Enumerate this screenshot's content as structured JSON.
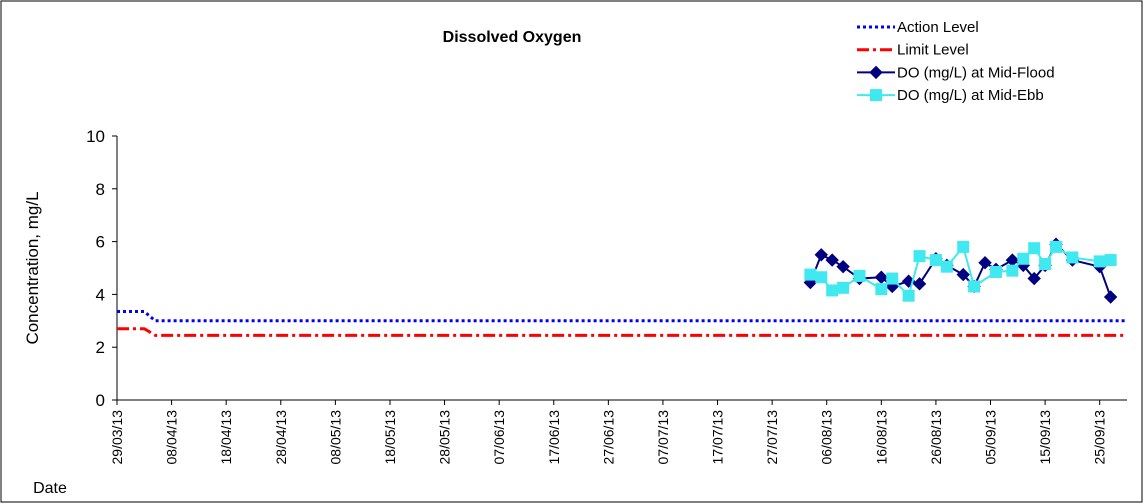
{
  "chart_data": {
    "type": "line",
    "title": "Dissolved Oxygen",
    "x_label": "Date",
    "y_label": "Concentration, mg/L",
    "xlim": [
      "29/03/13",
      "30/09/13"
    ],
    "xticks": [
      "29/03/13",
      "08/04/13",
      "18/04/13",
      "28/04/13",
      "08/05/13",
      "18/05/13",
      "28/05/13",
      "07/06/13",
      "17/06/13",
      "27/06/13",
      "07/07/13",
      "17/07/13",
      "27/07/13",
      "06/08/13",
      "16/08/13",
      "26/08/13",
      "05/09/13",
      "15/09/13",
      "25/09/13"
    ],
    "ylim": [
      0,
      10
    ],
    "yticks": [
      0,
      2,
      4,
      6,
      8,
      10
    ],
    "grid": false,
    "series": [
      {
        "name": "Action Level",
        "color": "#0000ff",
        "dash": "dot",
        "marker": "none",
        "x": [
          "29/03/13",
          "03/04/13",
          "05/04/13",
          "30/09/13"
        ],
        "values": [
          3.35,
          3.35,
          3.0,
          3.0
        ]
      },
      {
        "name": "Limit Level",
        "color": "#ff0000",
        "dash": "dashdot",
        "marker": "none",
        "x": [
          "29/03/13",
          "03/04/13",
          "05/04/13",
          "30/09/13"
        ],
        "values": [
          2.7,
          2.7,
          2.45,
          2.45
        ]
      },
      {
        "name": "DO (mg/L) at Mid-Flood",
        "color": "#000080",
        "dash": "solid",
        "marker": "diamond",
        "x": [
          "03/08/13",
          "05/08/13",
          "07/08/13",
          "09/08/13",
          "12/08/13",
          "16/08/13",
          "18/08/13",
          "21/08/13",
          "23/08/13",
          "26/08/13",
          "28/08/13",
          "31/08/13",
          "02/09/13",
          "04/09/13",
          "06/09/13",
          "09/09/13",
          "11/09/13",
          "13/09/13",
          "15/09/13",
          "17/09/13",
          "20/09/13",
          "25/09/13",
          "27/09/13"
        ],
        "values": [
          4.45,
          5.5,
          5.3,
          5.05,
          4.6,
          4.65,
          4.3,
          4.5,
          4.4,
          5.35,
          5.1,
          4.75,
          4.3,
          5.2,
          4.95,
          5.3,
          5.1,
          4.6,
          5.1,
          5.9,
          5.3,
          5.05,
          3.9
        ]
      },
      {
        "name": "DO (mg/L) at Mid-Ebb",
        "color": "#40e8f0",
        "dash": "solid",
        "marker": "square",
        "x": [
          "03/08/13",
          "05/08/13",
          "07/08/13",
          "09/08/13",
          "12/08/13",
          "16/08/13",
          "18/08/13",
          "21/08/13",
          "23/08/13",
          "26/08/13",
          "28/08/13",
          "31/08/13",
          "02/09/13",
          "06/09/13",
          "09/09/13",
          "11/09/13",
          "13/09/13",
          "15/09/13",
          "17/09/13",
          "20/09/13",
          "25/09/13",
          "27/09/13"
        ],
        "values": [
          4.75,
          4.65,
          4.15,
          4.25,
          4.7,
          4.2,
          4.6,
          3.95,
          5.45,
          5.3,
          5.05,
          5.8,
          4.3,
          4.85,
          4.9,
          5.35,
          5.75,
          5.15,
          5.8,
          5.4,
          5.25,
          5.3
        ]
      }
    ]
  }
}
